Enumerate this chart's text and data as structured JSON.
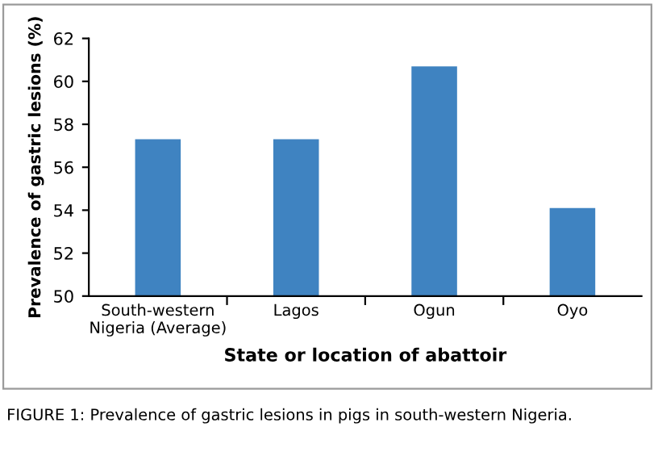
{
  "chart_data": {
    "type": "bar",
    "xlabel": "State or location of abattoir",
    "ylabel": "Prevalence of gastric lesions (%)",
    "categories": [
      "South-western\nNigeria (Average)",
      "Lagos",
      "Ogun",
      "Oyo"
    ],
    "values": [
      57.3,
      57.3,
      60.7,
      54.1
    ],
    "color": "#3f83c1",
    "ylim": [
      50,
      62
    ],
    "yticks": [
      50,
      52,
      54,
      56,
      58,
      60,
      62
    ],
    "grid": false,
    "legend": false,
    "annotations": [
      "FIGURE 1: Prevalence of gastric lesions in pigs in south-western Nigeria."
    ]
  }
}
